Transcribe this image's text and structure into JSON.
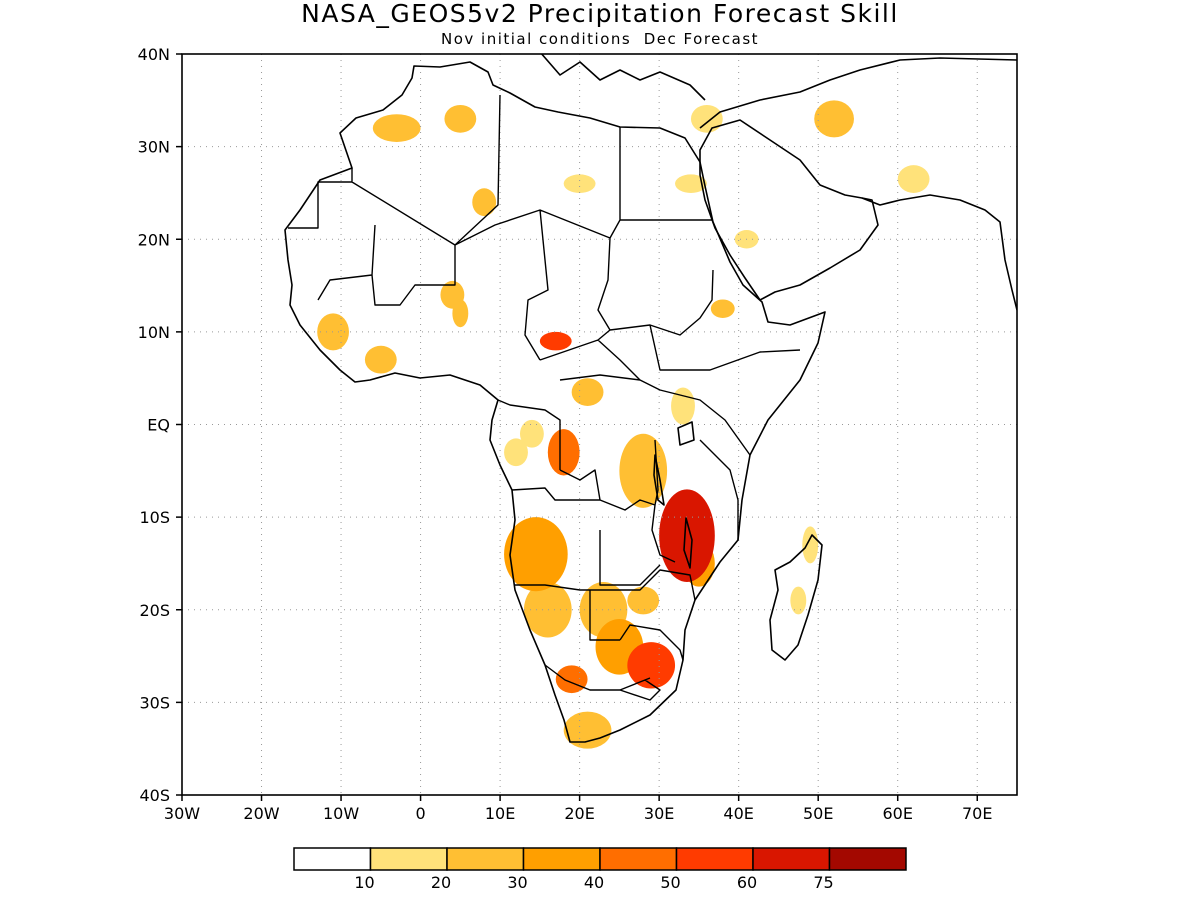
{
  "title": "NASA_GEOS5v2 Precipitation Forecast Skill",
  "subtitle": "Nov initial conditions  Dec Forecast",
  "map": {
    "projection": "lat-lon",
    "lon_range": [
      -30,
      75
    ],
    "lat_range": [
      -40,
      40
    ],
    "grid": "dotted",
    "x_ticks": [
      {
        "lon": -30,
        "label": "30W"
      },
      {
        "lon": -20,
        "label": "20W"
      },
      {
        "lon": -10,
        "label": "10W"
      },
      {
        "lon": 0,
        "label": "0"
      },
      {
        "lon": 10,
        "label": "10E"
      },
      {
        "lon": 20,
        "label": "20E"
      },
      {
        "lon": 30,
        "label": "30E"
      },
      {
        "lon": 40,
        "label": "40E"
      },
      {
        "lon": 50,
        "label": "50E"
      },
      {
        "lon": 60,
        "label": "60E"
      },
      {
        "lon": 70,
        "label": "70E"
      }
    ],
    "y_ticks": [
      {
        "lat": 40,
        "label": "40N"
      },
      {
        "lat": 30,
        "label": "30N"
      },
      {
        "lat": 20,
        "label": "20N"
      },
      {
        "lat": 10,
        "label": "10N"
      },
      {
        "lat": 0,
        "label": "EQ"
      },
      {
        "lat": -10,
        "label": "10S"
      },
      {
        "lat": -20,
        "label": "20S"
      },
      {
        "lat": -30,
        "label": "30S"
      },
      {
        "lat": -40,
        "label": "40S"
      }
    ]
  },
  "legend": {
    "colors": [
      "#ffffff",
      "#ffe27a",
      "#ffbf33",
      "#ff9f00",
      "#ff6e00",
      "#ff3b00",
      "#d91600",
      "#a30800"
    ],
    "labels": [
      "10",
      "20",
      "30",
      "40",
      "50",
      "60",
      "75"
    ]
  },
  "skill_blobs": [
    {
      "lon": 33.5,
      "lat": -12,
      "rx": 3.5,
      "ry": 5,
      "level": 6
    },
    {
      "lon": 29,
      "lat": -26,
      "rx": 3,
      "ry": 2.5,
      "level": 5
    },
    {
      "lon": 17,
      "lat": 9,
      "rx": 2,
      "ry": 1,
      "level": 5
    },
    {
      "lon": 18,
      "lat": -3,
      "rx": 2,
      "ry": 2.5,
      "level": 4
    },
    {
      "lon": 19,
      "lat": -27.5,
      "rx": 2,
      "ry": 1.5,
      "level": 4
    },
    {
      "lon": 25,
      "lat": -24,
      "rx": 3,
      "ry": 3,
      "level": 3
    },
    {
      "lon": 14.5,
      "lat": -14,
      "rx": 4,
      "ry": 4,
      "level": 3
    },
    {
      "lon": 28,
      "lat": -5,
      "rx": 3,
      "ry": 4,
      "level": 2
    },
    {
      "lon": 21,
      "lat": -33,
      "rx": 3,
      "ry": 2,
      "level": 2
    },
    {
      "lon": 52,
      "lat": 33,
      "rx": 2.5,
      "ry": 2,
      "level": 2
    },
    {
      "lon": -3,
      "lat": 32,
      "rx": 3,
      "ry": 1.5,
      "level": 2
    },
    {
      "lon": 5,
      "lat": 33,
      "rx": 2,
      "ry": 1.5,
      "level": 2
    },
    {
      "lon": -11,
      "lat": 10,
      "rx": 2,
      "ry": 2,
      "level": 2
    },
    {
      "lon": -5,
      "lat": 7,
      "rx": 2,
      "ry": 1.5,
      "level": 2
    },
    {
      "lon": 4,
      "lat": 14,
      "rx": 1.5,
      "ry": 1.5,
      "level": 2
    },
    {
      "lon": 5,
      "lat": 12,
      "rx": 1,
      "ry": 1.5,
      "level": 2
    },
    {
      "lon": 21,
      "lat": 3.5,
      "rx": 2,
      "ry": 1.5,
      "level": 2
    },
    {
      "lon": 23,
      "lat": -20,
      "rx": 3,
      "ry": 3,
      "level": 2
    },
    {
      "lon": 16,
      "lat": -20,
      "rx": 3,
      "ry": 3,
      "level": 2
    },
    {
      "lon": 28,
      "lat": -19,
      "rx": 2,
      "ry": 1.5,
      "level": 2
    },
    {
      "lon": 35,
      "lat": -15,
      "rx": 2,
      "ry": 2.5,
      "level": 3
    },
    {
      "lon": 8,
      "lat": 24,
      "rx": 1.5,
      "ry": 1.5,
      "level": 2
    },
    {
      "lon": 41,
      "lat": 20,
      "rx": 1.5,
      "ry": 1,
      "level": 1
    },
    {
      "lon": 38,
      "lat": 12.5,
      "rx": 1.5,
      "ry": 1,
      "level": 2
    },
    {
      "lon": 14,
      "lat": -1,
      "rx": 1.5,
      "ry": 1.5,
      "level": 1
    },
    {
      "lon": 12,
      "lat": -3,
      "rx": 1.5,
      "ry": 1.5,
      "level": 1
    },
    {
      "lon": 62,
      "lat": 26.5,
      "rx": 2,
      "ry": 1.5,
      "level": 1
    },
    {
      "lon": 33,
      "lat": 2,
      "rx": 1.5,
      "ry": 2,
      "level": 1
    },
    {
      "lon": 47.5,
      "lat": -19,
      "rx": 1,
      "ry": 1.5,
      "level": 1
    },
    {
      "lon": 49,
      "lat": -13,
      "rx": 1,
      "ry": 2,
      "level": 1
    },
    {
      "lon": 34,
      "lat": 26,
      "rx": 2,
      "ry": 1,
      "level": 1
    },
    {
      "lon": 20,
      "lat": 26,
      "rx": 2,
      "ry": 1,
      "level": 1
    },
    {
      "lon": 36,
      "lat": 33,
      "rx": 2,
      "ry": 1.5,
      "level": 1
    }
  ]
}
